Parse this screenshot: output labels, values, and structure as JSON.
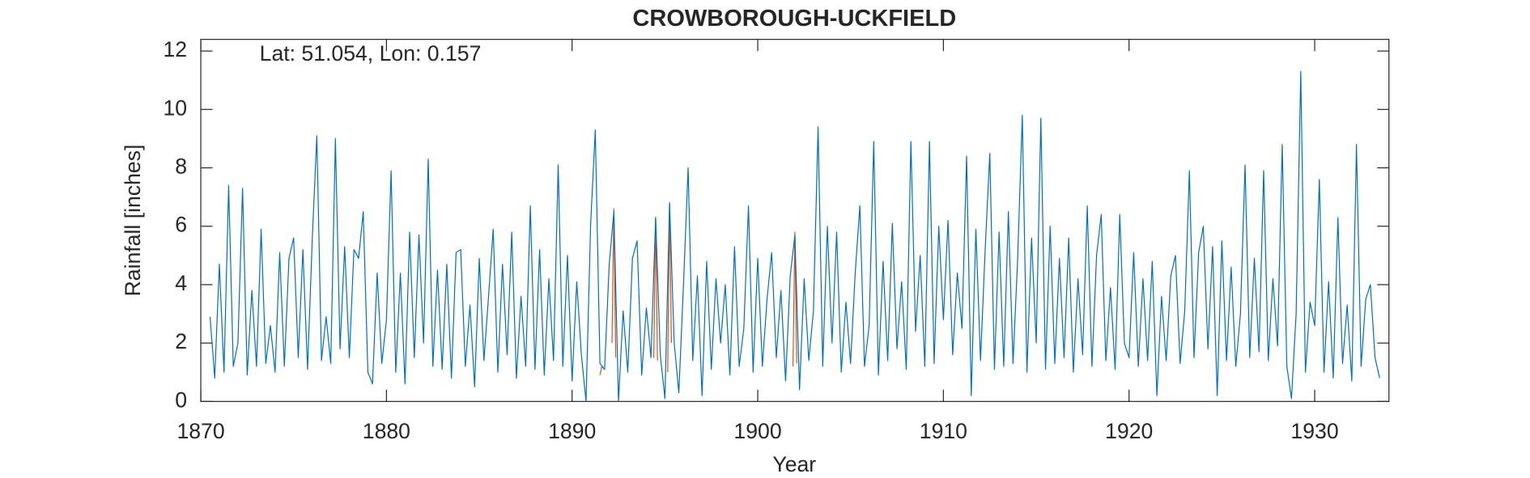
{
  "chart_data": {
    "type": "line",
    "title": "CROWBOROUGH-UCKFIELD",
    "annotation": "Lat: 51.054, Lon: 0.157",
    "xlabel": "Year",
    "ylabel": "Rainfall [inches]",
    "xlim": [
      1870,
      1934
    ],
    "ylim": [
      0,
      12.4
    ],
    "xticks": [
      1870,
      1880,
      1890,
      1900,
      1910,
      1920,
      1930
    ],
    "yticks": [
      0,
      2,
      4,
      6,
      8,
      10,
      12
    ],
    "grid": false,
    "series": [
      {
        "color": "#D95319",
        "x": [
          1891.5,
          1891.6,
          1891.75,
          1891.9,
          1892.15,
          1892.25,
          1892.35,
          1892.5,
          1894.4,
          1894.5,
          1894.6,
          1894.8,
          1895.15,
          1895.25,
          1895.35,
          1895.5,
          1901.9,
          1902.0,
          1902.1
        ],
        "values": [
          0.9,
          1.2,
          1.1,
          null,
          2.0,
          6.6,
          1.5,
          null,
          1.5,
          6.3,
          1.4,
          null,
          1.0,
          6.8,
          2.0,
          null,
          1.2,
          5.8,
          1.3
        ]
      },
      {
        "color": "#0072BD",
        "x": [
          1870.5,
          1870.75,
          1871,
          1871.25,
          1871.5,
          1871.75,
          1872,
          1872.25,
          1872.5,
          1872.75,
          1873,
          1873.25,
          1873.5,
          1873.75,
          1874,
          1874.25,
          1874.5,
          1874.75,
          1875,
          1875.25,
          1875.5,
          1875.75,
          1876,
          1876.25,
          1876.5,
          1876.75,
          1877,
          1877.25,
          1877.5,
          1877.75,
          1878,
          1878.25,
          1878.5,
          1878.75,
          1879,
          1879.25,
          1879.5,
          1879.75,
          1880,
          1880.25,
          1880.5,
          1880.75,
          1881,
          1881.25,
          1881.5,
          1881.75,
          1882,
          1882.25,
          1882.5,
          1882.75,
          1883,
          1883.25,
          1883.5,
          1883.75,
          1884,
          1884.25,
          1884.5,
          1884.75,
          1885,
          1885.25,
          1885.5,
          1885.75,
          1886,
          1886.25,
          1886.5,
          1886.75,
          1887,
          1887.25,
          1887.5,
          1887.75,
          1888,
          1888.25,
          1888.5,
          1888.75,
          1889,
          1889.25,
          1889.5,
          1889.75,
          1890,
          1890.25,
          1890.5,
          1890.75,
          1891,
          1891.25,
          1891.5,
          1891.75,
          1892,
          1892.25,
          1892.5,
          1892.75,
          1893,
          1893.25,
          1893.5,
          1893.75,
          1894,
          1894.25,
          1894.5,
          1894.75,
          1895,
          1895.25,
          1895.5,
          1895.75,
          1896,
          1896.25,
          1896.5,
          1896.75,
          1897,
          1897.25,
          1897.5,
          1897.75,
          1898,
          1898.25,
          1898.5,
          1898.75,
          1899,
          1899.25,
          1899.5,
          1899.75,
          1900,
          1900.25,
          1900.5,
          1900.75,
          1901,
          1901.25,
          1901.5,
          1901.75,
          1902,
          1902.25,
          1902.5,
          1902.75,
          1903,
          1903.25,
          1903.5,
          1903.75,
          1904,
          1904.25,
          1904.5,
          1904.75,
          1905,
          1905.25,
          1905.5,
          1905.75,
          1906,
          1906.25,
          1906.5,
          1906.75,
          1907,
          1907.25,
          1907.5,
          1907.75,
          1908,
          1908.25,
          1908.5,
          1908.75,
          1909,
          1909.25,
          1909.5,
          1909.75,
          1910,
          1910.25,
          1910.5,
          1910.75,
          1911,
          1911.25,
          1911.5,
          1911.75,
          1912,
          1912.25,
          1912.5,
          1912.75,
          1913,
          1913.25,
          1913.5,
          1913.75,
          1914,
          1914.25,
          1914.5,
          1914.75,
          1915,
          1915.25,
          1915.5,
          1915.75,
          1916,
          1916.25,
          1916.5,
          1916.75,
          1917,
          1917.25,
          1917.5,
          1917.75,
          1918,
          1918.25,
          1918.5,
          1918.75,
          1919,
          1919.25,
          1919.5,
          1919.75,
          1920,
          1920.25,
          1920.5,
          1920.75,
          1921,
          1921.25,
          1921.5,
          1921.75,
          1922,
          1922.25,
          1922.5,
          1922.75,
          1923,
          1923.25,
          1923.5,
          1923.75,
          1924,
          1924.25,
          1924.5,
          1924.75,
          1925,
          1925.25,
          1925.5,
          1925.75,
          1926,
          1926.25,
          1926.5,
          1926.75,
          1927,
          1927.25,
          1927.5,
          1927.75,
          1928,
          1928.25,
          1928.5,
          1928.75,
          1929,
          1929.25,
          1929.5,
          1929.75,
          1930,
          1930.25,
          1930.5,
          1930.75,
          1931,
          1931.25,
          1931.5,
          1931.75,
          1932,
          1932.25,
          1932.5,
          1932.75,
          1933,
          1933.25,
          1933.5
        ],
        "values": [
          2.9,
          0.8,
          4.7,
          1.0,
          7.4,
          1.2,
          2.0,
          7.3,
          0.9,
          3.8,
          1.2,
          5.9,
          1.3,
          2.6,
          1.0,
          5.1,
          1.2,
          4.9,
          5.6,
          1.5,
          5.2,
          1.1,
          5.5,
          9.1,
          1.4,
          2.9,
          1.3,
          9.0,
          1.8,
          5.3,
          1.5,
          5.2,
          4.9,
          6.5,
          1.0,
          0.6,
          4.4,
          1.3,
          2.8,
          7.9,
          1.0,
          4.4,
          0.6,
          5.8,
          1.5,
          5.7,
          2.0,
          8.3,
          1.2,
          4.5,
          1.1,
          4.7,
          0.8,
          5.1,
          5.2,
          1.2,
          3.3,
          0.5,
          4.9,
          1.4,
          3.6,
          5.9,
          1.0,
          4.7,
          1.6,
          5.8,
          0.8,
          3.6,
          1.2,
          6.7,
          1.1,
          5.2,
          0.9,
          4.2,
          1.4,
          8.1,
          1.2,
          5.0,
          0.7,
          4.1,
          1.6,
          0.0,
          6.1,
          9.3,
          1.3,
          1.1,
          4.7,
          6.5,
          0.0,
          3.1,
          1.0,
          4.9,
          5.5,
          0.9,
          3.2,
          1.5,
          6.3,
          1.6,
          0.1,
          6.8,
          2.0,
          0.3,
          4.0,
          8.0,
          1.4,
          4.3,
          0.2,
          4.8,
          1.1,
          4.2,
          2.0,
          4.0,
          0.9,
          5.3,
          1.2,
          2.5,
          6.7,
          1.0,
          4.9,
          1.2,
          3.5,
          5.1,
          1.5,
          3.8,
          0.7,
          4.3,
          5.7,
          0.4,
          4.2,
          1.4,
          3.1,
          9.4,
          1.2,
          6.0,
          2.0,
          5.8,
          1.0,
          3.4,
          1.3,
          4.4,
          6.7,
          1.2,
          2.6,
          8.9,
          0.9,
          4.8,
          1.4,
          6.1,
          1.8,
          4.1,
          1.1,
          8.9,
          2.4,
          5.0,
          1.2,
          8.9,
          1.3,
          6.0,
          2.8,
          6.2,
          1.6,
          4.4,
          2.5,
          8.4,
          0.2,
          5.9,
          1.4,
          5.2,
          8.5,
          1.1,
          5.8,
          1.2,
          6.5,
          1.3,
          4.9,
          9.8,
          1.0,
          5.6,
          2.0,
          9.7,
          1.1,
          6.0,
          1.3,
          4.9,
          1.5,
          5.6,
          1.0,
          4.2,
          1.6,
          6.7,
          1.2,
          5.0,
          6.4,
          1.4,
          3.9,
          1.1,
          6.4,
          2.0,
          1.5,
          5.1,
          1.2,
          4.2,
          1.4,
          4.8,
          0.2,
          3.6,
          1.4,
          4.3,
          5.0,
          1.3,
          3.1,
          7.9,
          1.5,
          5.1,
          6.0,
          1.8,
          5.3,
          0.2,
          5.5,
          1.4,
          4.6,
          1.2,
          3.0,
          8.1,
          1.5,
          4.9,
          1.7,
          7.9,
          1.4,
          4.2,
          1.9,
          8.8,
          1.2,
          0.1,
          3.0,
          11.3,
          1.0,
          3.4,
          2.6,
          7.6,
          1.0,
          4.1,
          0.8,
          6.3,
          1.3,
          3.3,
          0.7,
          8.8,
          1.2,
          3.5,
          4.0,
          1.5,
          0.8
        ]
      }
    ]
  }
}
